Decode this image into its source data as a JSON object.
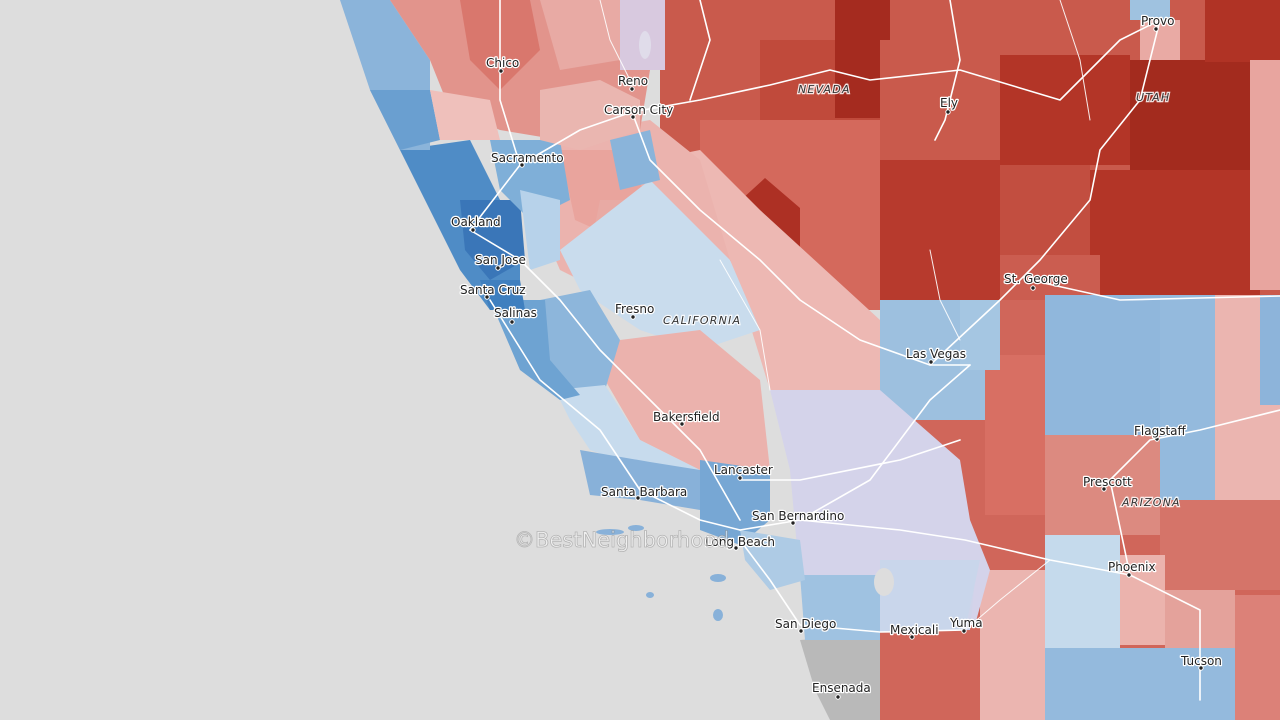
{
  "map": {
    "colors": {
      "ocean": "#dddddd",
      "mexico": "#b9b9b9",
      "roads": "#ffffff",
      "strong_red": "#b23a2c",
      "red": "#d0665a",
      "light_red": "#e9aaa4",
      "pale_red": "#efc4c0",
      "purple": "#d4d3ea",
      "pale_blue": "#c4d9ec",
      "light_blue": "#99bfdf",
      "blue": "#6ea3d2",
      "strong_blue": "#3e7dbd"
    },
    "state_labels": [
      {
        "id": "nevada",
        "text": "NEVADA"
      },
      {
        "id": "utah",
        "text": "UTAH"
      },
      {
        "id": "california",
        "text": "CALIFORNIA"
      },
      {
        "id": "arizona",
        "text": "ARIZONA"
      }
    ],
    "cities": [
      {
        "id": "chico",
        "name": "Chico"
      },
      {
        "id": "reno",
        "name": "Reno"
      },
      {
        "id": "carson-city",
        "name": "Carson City"
      },
      {
        "id": "sacramento",
        "name": "Sacramento"
      },
      {
        "id": "oakland",
        "name": "Oakland"
      },
      {
        "id": "san-jose",
        "name": "San Jose"
      },
      {
        "id": "santa-cruz",
        "name": "Santa Cruz"
      },
      {
        "id": "salinas",
        "name": "Salinas"
      },
      {
        "id": "fresno",
        "name": "Fresno"
      },
      {
        "id": "bakersfield",
        "name": "Bakersfield"
      },
      {
        "id": "lancaster",
        "name": "Lancaster"
      },
      {
        "id": "santa-barbara",
        "name": "Santa Barbara"
      },
      {
        "id": "san-bernardino",
        "name": "San Bernardino"
      },
      {
        "id": "long-beach",
        "name": "Long Beach"
      },
      {
        "id": "san-diego",
        "name": "San Diego"
      },
      {
        "id": "mexicali",
        "name": "Mexicali"
      },
      {
        "id": "yuma",
        "name": "Yuma"
      },
      {
        "id": "ensenada",
        "name": "Ensenada"
      },
      {
        "id": "las-vegas",
        "name": "Las Vegas"
      },
      {
        "id": "st-george",
        "name": "St. George"
      },
      {
        "id": "ely",
        "name": "Ely"
      },
      {
        "id": "provo",
        "name": "Provo"
      },
      {
        "id": "flagstaff",
        "name": "Flagstaff"
      },
      {
        "id": "prescott",
        "name": "Prescott"
      },
      {
        "id": "phoenix",
        "name": "Phoenix"
      },
      {
        "id": "tucson",
        "name": "Tucson"
      }
    ],
    "watermark": "©BestNeighborhood"
  }
}
